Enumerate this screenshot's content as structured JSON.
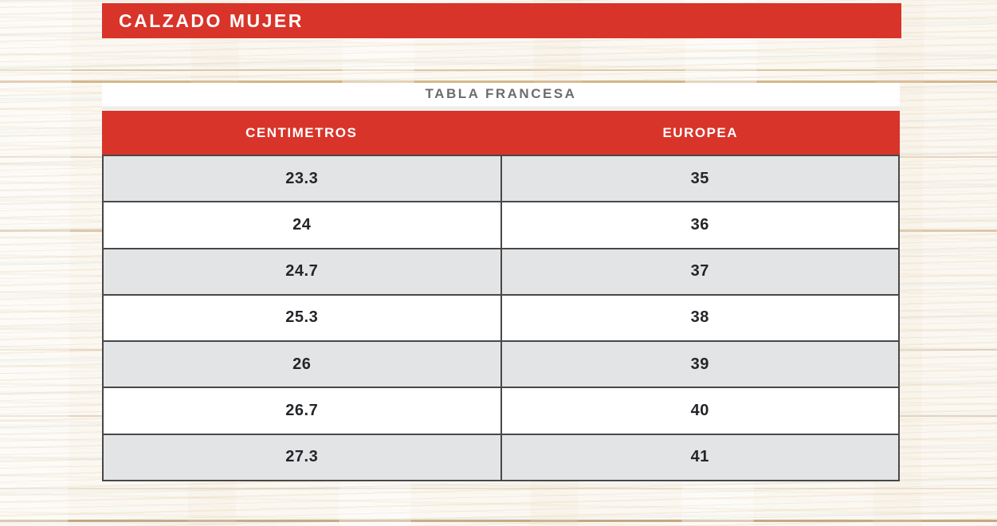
{
  "banner": {
    "title": "CALZADO MUJER"
  },
  "size_table": {
    "caption": "TABLA FRANCESA",
    "headers": {
      "cm": "CENTIMETROS",
      "eu": "EUROPEA"
    },
    "rows": [
      {
        "cm": "23.3",
        "eu": "35"
      },
      {
        "cm": "24",
        "eu": "36"
      },
      {
        "cm": "24.7",
        "eu": "37"
      },
      {
        "cm": "25.3",
        "eu": "38"
      },
      {
        "cm": "26",
        "eu": "39"
      },
      {
        "cm": "26.7",
        "eu": "40"
      },
      {
        "cm": "27.3",
        "eu": "41"
      }
    ]
  },
  "colors": {
    "accent_red": "#d8342a",
    "banner_text": "#ffffff",
    "caption_text": "#6a6d6e",
    "row_alt": "#e3e4e6",
    "cell_text": "#232528",
    "grid_border": "#484848",
    "wood_base": "#fbf8f2"
  },
  "chart_data": {
    "type": "table",
    "title": "CALZADO MUJER",
    "subtitle": "TABLA FRANCESA",
    "columns": [
      "CENTIMETROS",
      "EUROPEA"
    ],
    "rows": [
      [
        23.3,
        35
      ],
      [
        24,
        36
      ],
      [
        24.7,
        37
      ],
      [
        25.3,
        38
      ],
      [
        26,
        39
      ],
      [
        26.7,
        40
      ],
      [
        27.3,
        41
      ]
    ],
    "layout_hints": {
      "row_striping": "odd rows gray (#e3e4e6), even rows white",
      "header_style": "red background, white bold uppercase text",
      "background": "whitewashed wood texture"
    }
  }
}
